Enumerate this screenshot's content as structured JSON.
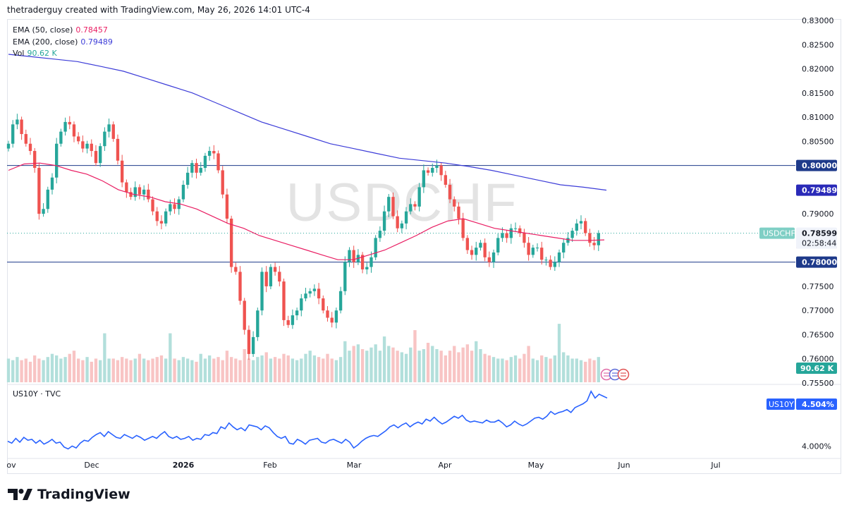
{
  "header": "thetraderguy created with TradingView.com, May 26, 2026 14:01 UTC-4",
  "watermark": "USDCHF",
  "legend": {
    "ema50_label": "EMA (50, close)",
    "ema50_value": "0.78457",
    "ema200_label": "EMA (200, close)",
    "ema200_value": "0.79489",
    "vol_label": "Vol",
    "vol_value": "90.62 K"
  },
  "lower_pane": {
    "label": "US10Y · TVC",
    "badge_symbol": "US10Y",
    "badge_value": "4.504%",
    "tick_4": "4.000%"
  },
  "price_badges": {
    "level_upper": "0.80000",
    "ema200": "0.79489",
    "symbol": "USDCHF",
    "last": "0.78599",
    "countdown": "02:58:44",
    "ema50": "0.78457",
    "level_lower": "0.78000",
    "volume": "90.62 K"
  },
  "colors": {
    "up": "#26a69a",
    "down": "#ef5350",
    "ema50": "#e91e63",
    "ema200": "#3c3cd8",
    "hline": "#1e3a8a",
    "yield": "#2962ff",
    "vol_up": "#b2dfdb",
    "vol_down": "#f8c4c4"
  },
  "footer": {
    "brand": "TradingView"
  },
  "chart_data": [
    {
      "type": "candlestick",
      "symbol": "USDCHF",
      "x_labels": [
        "ov",
        "Dec",
        "2026",
        "Feb",
        "Mar",
        "Apr",
        "May",
        "Jun",
        "Jul"
      ],
      "y_ticks": [
        "0.83000",
        "0.82500",
        "0.82000",
        "0.81500",
        "0.81000",
        "0.80500",
        "0.80000",
        "0.79500",
        "0.79000",
        "0.78500",
        "0.78000",
        "0.77500",
        "0.77000",
        "0.76500",
        "0.76000",
        "0.75500"
      ],
      "ylim": [
        0.755,
        0.83
      ],
      "horizontal_levels": [
        0.8,
        0.78
      ],
      "last_price": 0.78599,
      "ema50_last": 0.78457,
      "ema200_last": 0.79489,
      "volume_last": "90.62 K",
      "closes": [
        0.8045,
        0.8085,
        0.8095,
        0.8065,
        0.8045,
        0.803,
        0.7995,
        0.79,
        0.791,
        0.795,
        0.7975,
        0.8045,
        0.807,
        0.809,
        0.8085,
        0.806,
        0.805,
        0.8035,
        0.8045,
        0.803,
        0.8005,
        0.804,
        0.807,
        0.8085,
        0.8055,
        0.801,
        0.7965,
        0.7945,
        0.7935,
        0.7955,
        0.794,
        0.795,
        0.793,
        0.7905,
        0.7885,
        0.788,
        0.7905,
        0.792,
        0.791,
        0.793,
        0.796,
        0.7985,
        0.8005,
        0.7985,
        0.7995,
        0.802,
        0.803,
        0.8025,
        0.799,
        0.794,
        0.789,
        0.779,
        0.778,
        0.772,
        0.766,
        0.761,
        0.7645,
        0.77,
        0.778,
        0.775,
        0.779,
        0.778,
        0.776,
        0.768,
        0.767,
        0.769,
        0.77,
        0.7725,
        0.7735,
        0.774,
        0.7745,
        0.7725,
        0.77,
        0.7685,
        0.7675,
        0.77,
        0.774,
        0.78,
        0.7825,
        0.78,
        0.7815,
        0.7785,
        0.779,
        0.781,
        0.785,
        0.7865,
        0.7905,
        0.7935,
        0.7895,
        0.787,
        0.788,
        0.7905,
        0.792,
        0.7915,
        0.7955,
        0.799,
        0.7985,
        0.7995,
        0.8,
        0.798,
        0.796,
        0.793,
        0.7915,
        0.789,
        0.785,
        0.7825,
        0.7815,
        0.783,
        0.784,
        0.781,
        0.78,
        0.782,
        0.785,
        0.786,
        0.785,
        0.787,
        0.787,
        0.786,
        0.784,
        0.7815,
        0.783,
        0.783,
        0.7805,
        0.7805,
        0.779,
        0.78,
        0.782,
        0.784,
        0.785,
        0.7865,
        0.788,
        0.7885,
        0.786,
        0.784,
        0.7835,
        0.786
      ],
      "ema50": [
        0.799,
        0.8003,
        0.8005,
        0.8,
        0.799,
        0.7982,
        0.7968,
        0.795,
        0.794,
        0.7935,
        0.7925,
        0.792,
        0.791,
        0.7895,
        0.788,
        0.787,
        0.7855,
        0.7845,
        0.7835,
        0.7825,
        0.7815,
        0.7805,
        0.7805,
        0.7815,
        0.7825,
        0.784,
        0.7855,
        0.7872,
        0.7885,
        0.789,
        0.788,
        0.787,
        0.7865,
        0.786,
        0.7855,
        0.785,
        0.7845,
        0.7845,
        0.7846
      ],
      "ema50_x_start_index": 0,
      "ema200": [
        0.823,
        0.8225,
        0.822,
        0.8215,
        0.8205,
        0.8195,
        0.818,
        0.8165,
        0.815,
        0.813,
        0.811,
        0.809,
        0.8075,
        0.806,
        0.8045,
        0.8035,
        0.8025,
        0.8015,
        0.801,
        0.8005,
        0.7998,
        0.799,
        0.798,
        0.797,
        0.796,
        0.7955,
        0.7949
      ],
      "volumes_relative": [
        0.3,
        0.28,
        0.32,
        0.28,
        0.3,
        0.26,
        0.34,
        0.3,
        0.28,
        0.32,
        0.36,
        0.34,
        0.3,
        0.32,
        0.36,
        0.4,
        0.3,
        0.28,
        0.32,
        0.26,
        0.3,
        0.28,
        0.62,
        0.3,
        0.3,
        0.28,
        0.32,
        0.3,
        0.28,
        0.3,
        0.36,
        0.3,
        0.28,
        0.3,
        0.32,
        0.34,
        0.3,
        0.62,
        0.3,
        0.28,
        0.32,
        0.3,
        0.28,
        0.26,
        0.36,
        0.3,
        0.34,
        0.3,
        0.32,
        0.28,
        0.4,
        0.32,
        0.3,
        0.28,
        0.42,
        0.3,
        0.28,
        0.32,
        0.34,
        0.38,
        0.3,
        0.32,
        0.3,
        0.36,
        0.34,
        0.3,
        0.28,
        0.3,
        0.36,
        0.4,
        0.34,
        0.32,
        0.3,
        0.36,
        0.3,
        0.28,
        0.32,
        0.52,
        0.4,
        0.46,
        0.48,
        0.42,
        0.4,
        0.44,
        0.48,
        0.4,
        0.58,
        0.46,
        0.44,
        0.4,
        0.38,
        0.36,
        0.44,
        0.66,
        0.4,
        0.42,
        0.5,
        0.46,
        0.42,
        0.4,
        0.34,
        0.4,
        0.46,
        0.38,
        0.44,
        0.48,
        0.4,
        0.52,
        0.42,
        0.36,
        0.34,
        0.32,
        0.3,
        0.3,
        0.28,
        0.32,
        0.34,
        0.3,
        0.36,
        0.46,
        0.3,
        0.28,
        0.34,
        0.32,
        0.3,
        0.34,
        0.74,
        0.38,
        0.34,
        0.3,
        0.3,
        0.28,
        0.26,
        0.3,
        0.28,
        0.32,
        0.3,
        0.3,
        0.32,
        0.3,
        0.34,
        0.32,
        0.36,
        0.3,
        0.36,
        0.3,
        0.32,
        0.3,
        0.3,
        0.32
      ]
    },
    {
      "type": "line",
      "symbol": "US10Y",
      "series_label": "US10Y · TVC",
      "last_value": 4.504,
      "y_tick": "4.000%",
      "values": [
        4.05,
        4.03,
        4.08,
        4.04,
        4.09,
        4.06,
        4.07,
        4.03,
        4.06,
        4.02,
        4.04,
        4.07,
        4.03,
        4.04,
        3.99,
        3.97,
        4.0,
        3.98,
        4.03,
        4.06,
        4.05,
        4.09,
        4.12,
        4.14,
        4.1,
        4.15,
        4.12,
        4.09,
        4.08,
        4.12,
        4.1,
        4.08,
        4.11,
        4.09,
        4.06,
        4.08,
        4.1,
        4.08,
        4.12,
        4.15,
        4.1,
        4.08,
        4.1,
        4.07,
        4.08,
        4.1,
        4.06,
        4.08,
        4.07,
        4.12,
        4.11,
        4.14,
        4.13,
        4.2,
        4.18,
        4.24,
        4.2,
        4.17,
        4.19,
        4.16,
        4.22,
        4.21,
        4.2,
        4.17,
        4.21,
        4.19,
        4.14,
        4.1,
        4.08,
        4.1,
        4.03,
        4.02,
        4.07,
        4.05,
        4.02,
        4.06,
        4.07,
        4.08,
        4.04,
        4.03,
        4.06,
        4.07,
        4.05,
        4.03,
        4.07,
        4.04,
        3.98,
        4.01,
        4.05,
        4.08,
        4.1,
        4.11,
        4.1,
        4.13,
        4.16,
        4.2,
        4.22,
        4.19,
        4.22,
        4.24,
        4.2,
        4.23,
        4.25,
        4.23,
        4.28,
        4.26,
        4.3,
        4.26,
        4.23,
        4.25,
        4.28,
        4.31,
        4.29,
        4.32,
        4.27,
        4.25,
        4.26,
        4.25,
        4.24,
        4.27,
        4.25,
        4.25,
        4.27,
        4.24,
        4.2,
        4.22,
        4.26,
        4.23,
        4.21,
        4.23,
        4.26,
        4.29,
        4.3,
        4.28,
        4.31,
        4.36,
        4.33,
        4.35,
        4.36,
        4.38,
        4.35,
        4.4,
        4.42,
        4.44,
        4.47,
        4.57,
        4.5,
        4.54,
        4.52,
        4.5
      ]
    }
  ]
}
